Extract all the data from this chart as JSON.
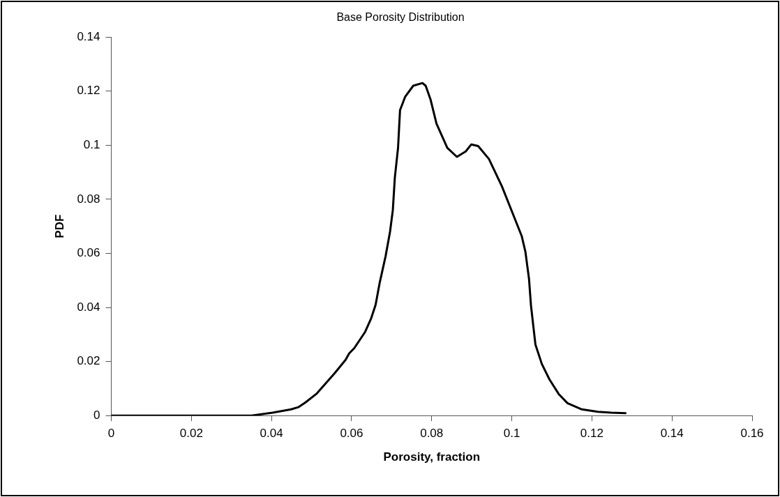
{
  "chart_data": {
    "type": "line",
    "title": "Base Porosity Distribution",
    "xlabel": "Porosity, fraction",
    "ylabel": "PDF",
    "xlim": [
      0,
      0.16
    ],
    "xticks": [
      0,
      0.02,
      0.04,
      0.06,
      0.08,
      0.1,
      0.12,
      0.14,
      0.16
    ],
    "ylim": [
      0,
      0.14
    ],
    "yticks": [
      0,
      0.02,
      0.04,
      0.06,
      0.08,
      0.1,
      0.12,
      0.14
    ],
    "grid": false,
    "legend": false,
    "marker": "none",
    "line_style": "solid",
    "series": [
      {
        "color": "#000000",
        "x": [
          0,
          0.035,
          0.0403,
          0.0449,
          0.0467,
          0.0485,
          0.0512,
          0.053,
          0.0558,
          0.0585,
          0.0594,
          0.0607,
          0.0634,
          0.0649,
          0.066,
          0.067,
          0.0685,
          0.0696,
          0.0703,
          0.0708,
          0.0716,
          0.0721,
          0.0734,
          0.0754,
          0.0777,
          0.0785,
          0.0797,
          0.0812,
          0.0839,
          0.0863,
          0.0885,
          0.0899,
          0.0916,
          0.0943,
          0.0975,
          0.1006,
          0.1025,
          0.1034,
          0.1043,
          0.1048,
          0.1059,
          0.1075,
          0.1094,
          0.1117,
          0.1139,
          0.1175,
          0.1215,
          0.1248,
          0.1284
        ],
        "values": [
          0,
          0,
          0.0011,
          0.0023,
          0.0031,
          0.0049,
          0.008,
          0.011,
          0.0157,
          0.0206,
          0.023,
          0.025,
          0.031,
          0.036,
          0.041,
          0.049,
          0.059,
          0.068,
          0.076,
          0.088,
          0.099,
          0.113,
          0.118,
          0.122,
          0.123,
          0.122,
          0.117,
          0.108,
          0.099,
          0.0957,
          0.0977,
          0.1003,
          0.0997,
          0.0949,
          0.0849,
          0.0734,
          0.0663,
          0.0606,
          0.0506,
          0.0406,
          0.0263,
          0.0191,
          0.0134,
          0.008,
          0.0046,
          0.0023,
          0.0014,
          0.0011,
          0.0009
        ]
      }
    ]
  }
}
